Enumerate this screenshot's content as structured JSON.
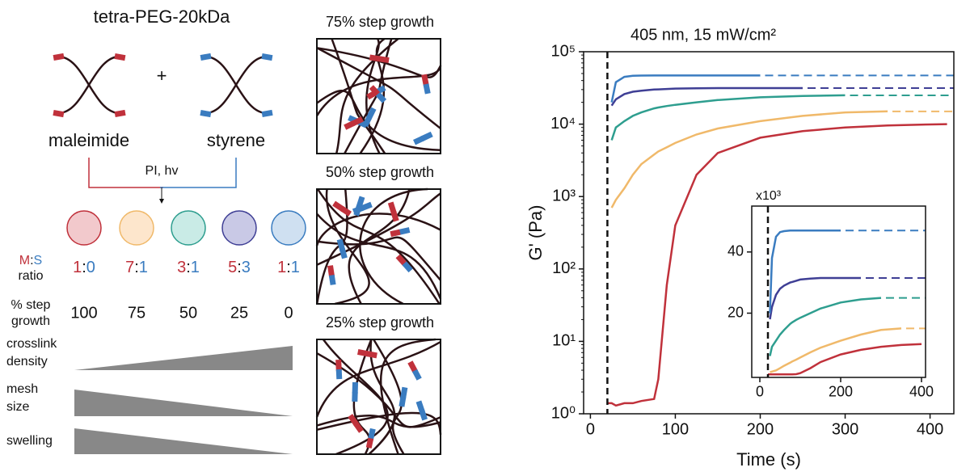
{
  "schematic": {
    "title": "tetra-PEG-20kDa",
    "monomers": [
      "maleimide",
      "styrene"
    ],
    "plus": "+",
    "reaction": "PI, hv",
    "circles": [
      {
        "fill": "#f2c9cc",
        "stroke": "#c0313b"
      },
      {
        "fill": "#fde6cc",
        "stroke": "#f0b96a"
      },
      {
        "fill": "#c9ebe6",
        "stroke": "#2e9e8f"
      },
      {
        "fill": "#c9c9e6",
        "stroke": "#3f3f95"
      },
      {
        "fill": "#cfe0f1",
        "stroke": "#3a7cc0"
      }
    ],
    "ms_label": {
      "m": "M",
      "sep": ":",
      "s": "S",
      "line2": "ratio"
    },
    "ratios": [
      {
        "m": "1",
        "s": "0"
      },
      {
        "m": "7",
        "s": "1"
      },
      {
        "m": "3",
        "s": "1"
      },
      {
        "m": "5",
        "s": "3"
      },
      {
        "m": "1",
        "s": "1"
      }
    ],
    "step_label": [
      "% step",
      "growth"
    ],
    "step_values": [
      100,
      75,
      50,
      25,
      0
    ],
    "wedges": [
      [
        "crosslink",
        "density"
      ],
      [
        "mesh",
        "size"
      ],
      [
        "swelling"
      ]
    ],
    "networks": [
      {
        "title": "75% step growth",
        "color": "#f0b96a"
      },
      {
        "title": "50% step growth",
        "color": "#2e9e8f"
      },
      {
        "title": "25% step growth",
        "color": "#3f3f95"
      }
    ]
  },
  "chart_data": [
    {
      "type": "line",
      "title": "405 nm, 15 mW/cm²",
      "xlabel": "Time (s)",
      "ylabel": "G' (Pa)",
      "log_y": true,
      "vline": 20,
      "xlim": [
        -8,
        428
      ],
      "xticks": [
        0,
        100,
        200,
        300,
        400
      ],
      "ylim": [
        1,
        100000
      ],
      "yticks": [
        {
          "value": 1,
          "label": "10⁰"
        },
        {
          "value": 10,
          "label": "10¹"
        },
        {
          "value": 100,
          "label": "10²"
        },
        {
          "value": 1000,
          "label": "10³"
        },
        {
          "value": 10000,
          "label": "10⁴"
        },
        {
          "value": 100000,
          "label": "10⁵"
        }
      ],
      "x": [
        20,
        25,
        30,
        40,
        50,
        60,
        75,
        80,
        90,
        100,
        125,
        150,
        200,
        250,
        300,
        350,
        400,
        420
      ],
      "series": [
        {
          "color": "#c0313b",
          "values": [
            1.4,
            1.4,
            1.3,
            1.4,
            1.4,
            1.5,
            1.6,
            3,
            60,
            400,
            2000,
            4000,
            6500,
            8000,
            9000,
            9600,
            9900,
            10000
          ]
        },
        {
          "color": "#f0b96a",
          "plateau": 15000,
          "values": [
            null,
            700,
            900,
            1300,
            2000,
            2800,
            3800,
            4200,
            4800,
            5500,
            7200,
            8700,
            11000,
            13000,
            14500,
            15000,
            null,
            null
          ]
        },
        {
          "color": "#2e9e8f",
          "plateau": 25000,
          "values": [
            null,
            6000,
            9000,
            11000,
            13000,
            14500,
            16500,
            17000,
            17800,
            18500,
            20000,
            21500,
            23500,
            24500,
            25000,
            null,
            null,
            null
          ]
        },
        {
          "color": "#3f3f95",
          "plateau": 31500,
          "values": [
            null,
            18000,
            22000,
            26000,
            28000,
            29000,
            30000,
            30200,
            30600,
            31000,
            31300,
            31500,
            31500,
            31500,
            null,
            null,
            null,
            null
          ]
        },
        {
          "color": "#3a7cc0",
          "plateau": 47000,
          "values": [
            null,
            20000,
            38000,
            45000,
            46500,
            46800,
            47000,
            47000,
            47000,
            47000,
            47000,
            47000,
            47000,
            null,
            null,
            null,
            null,
            null
          ]
        }
      ]
    },
    {
      "type": "line",
      "y_multiplier": "x10³",
      "vline": 20,
      "xlim": [
        -20,
        410
      ],
      "xticks": [
        0,
        200,
        400
      ],
      "ylim": [
        -1,
        55
      ],
      "yticks": [
        20,
        40
      ],
      "x": [
        20,
        25,
        30,
        40,
        50,
        60,
        75,
        80,
        90,
        100,
        125,
        150,
        200,
        250,
        300,
        350,
        400,
        420
      ],
      "series": [
        {
          "color": "#c0313b",
          "values": [
            0,
            0,
            0,
            0,
            0,
            0,
            0,
            0,
            0.06,
            0.4,
            2,
            4,
            6.5,
            8,
            9,
            9.6,
            9.9,
            null
          ]
        },
        {
          "color": "#f0b96a",
          "plateau": 15,
          "values": [
            null,
            0.7,
            0.9,
            1.3,
            2,
            2.8,
            3.8,
            4.2,
            4.8,
            5.5,
            7.2,
            8.7,
            11,
            13,
            14.5,
            15,
            null,
            null
          ]
        },
        {
          "color": "#2e9e8f",
          "plateau": 25,
          "values": [
            null,
            6,
            9,
            11,
            13,
            14.5,
            16.5,
            17,
            17.8,
            18.5,
            20,
            21.5,
            23.5,
            24.5,
            25,
            null,
            null,
            null
          ]
        },
        {
          "color": "#3f3f95",
          "plateau": 31.5,
          "values": [
            null,
            18,
            22,
            26,
            28,
            29,
            30,
            30.2,
            30.6,
            31,
            31.3,
            31.5,
            31.5,
            31.5,
            null,
            null,
            null,
            null
          ]
        },
        {
          "color": "#3a7cc0",
          "plateau": 47,
          "values": [
            null,
            20,
            38,
            45,
            46.5,
            46.8,
            47,
            47,
            47,
            47,
            47,
            47,
            47,
            null,
            null,
            null,
            null,
            null
          ]
        }
      ]
    }
  ]
}
